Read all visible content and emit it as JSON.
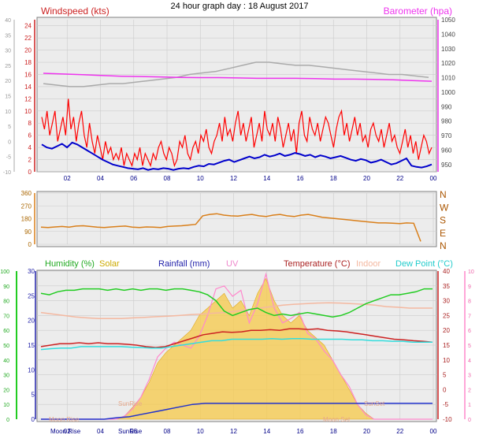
{
  "page_title": "24 hour graph day : 18 August 2017",
  "colors": {
    "wind": "#ff0000",
    "wind_avg": "#0000cc",
    "baro": "#ee33ee",
    "gust_max": "#aaaaaa",
    "dir": "#d97f1a",
    "humidity": "#22cc22",
    "solar": "#f5c542",
    "rain": "#2233cc",
    "uv": "#ff88cc",
    "temp": "#cc2222",
    "indoor": "#f4b8a0",
    "dew": "#33dddd",
    "grid": "#cccccc",
    "plot_bg": "#ececec"
  },
  "chart_data": [
    {
      "type": "line",
      "title": "",
      "x_ticks": [
        "02",
        "04",
        "06",
        "08",
        "10",
        "12",
        "14",
        "16",
        "18",
        "20",
        "22",
        "00"
      ],
      "left_axis": {
        "label": "Windspeed (kts)",
        "ticks": [
          24,
          22,
          20,
          18,
          16,
          14,
          12,
          10,
          8,
          6,
          4,
          2,
          0
        ],
        "range": [
          0,
          25
        ]
      },
      "right_axis": {
        "label": "Barometer (hpa)",
        "ticks": [
          1050,
          1040,
          1030,
          1020,
          1010,
          1000,
          990,
          980,
          970,
          960,
          950
        ],
        "range": [
          945,
          1050
        ]
      },
      "extra_left_ticks": [
        40,
        35,
        30,
        25,
        20,
        15,
        10,
        5,
        0,
        -5,
        -10
      ],
      "series": [
        {
          "name": "Windspeed (kts)",
          "axis": "left",
          "note": "gust",
          "values": [
            9,
            7,
            10,
            6,
            8,
            10,
            5,
            7,
            9,
            6,
            12,
            7,
            9,
            5,
            8,
            10,
            6,
            4,
            8,
            5,
            3,
            6,
            4,
            2,
            5,
            3,
            4,
            2,
            3,
            2,
            4,
            1,
            3,
            2,
            1,
            3,
            2,
            4,
            1,
            3,
            2,
            1,
            3,
            2,
            4,
            5,
            3,
            2,
            4,
            3,
            1,
            2,
            5,
            4,
            6,
            3,
            2,
            4,
            5,
            3,
            6,
            5,
            7,
            4,
            3,
            5,
            6,
            8,
            5,
            9,
            6,
            7,
            5,
            8,
            10,
            6,
            8,
            5,
            7,
            9,
            4,
            6,
            8,
            5,
            10,
            7,
            6,
            8,
            5,
            9,
            7,
            4,
            6,
            8,
            5,
            7,
            3,
            8,
            10,
            6,
            5,
            9,
            7,
            6,
            8,
            5,
            7,
            9,
            8,
            6,
            4,
            7,
            9,
            10,
            6,
            8,
            5,
            7,
            9,
            6,
            8,
            5,
            6,
            4,
            7,
            8,
            6,
            5,
            7,
            4,
            6,
            8,
            5,
            6,
            4,
            3,
            5,
            7,
            4,
            6,
            3,
            5,
            2,
            4,
            6,
            5,
            3,
            4
          ]
        },
        {
          "name": "",
          "axis": "left",
          "note": "average",
          "values": [
            4.5,
            4,
            3.8,
            4.2,
            4.6,
            4,
            4.8,
            4.5,
            4,
            3.5,
            3,
            2.5,
            2,
            1.6,
            1.2,
            1,
            0.8,
            0.6,
            0.5,
            0.4,
            0.6,
            0.3,
            0.5,
            0.4,
            0.6,
            0.5,
            0.3,
            0.5,
            0.6,
            0.5,
            0.8,
            1,
            0.9,
            1.3,
            1.2,
            1.5,
            1.8,
            2,
            1.6,
            1.9,
            2.2,
            2.5,
            2.2,
            2.4,
            2.8,
            2.5,
            2.7,
            3,
            2.6,
            2.8,
            3.1,
            2.9,
            2.6,
            2.8,
            2.4,
            2.7,
            2.5,
            2.2,
            2.4,
            2.6,
            2.3,
            2,
            1.8,
            2.1,
            1.9,
            1.5,
            1.7,
            2,
            1.6,
            1.2,
            1.4,
            1.8,
            2.2,
            1,
            0.8,
            0.7,
            0.9,
            1.2
          ]
        },
        {
          "name": "Barometer (hpa)",
          "axis": "right",
          "values": [
            1013,
            1012.5,
            1012,
            1011.5,
            1011,
            1010.8,
            1010.5,
            1010.2,
            1010,
            1010,
            1009.8,
            1009.5,
            1009.5,
            1009.5,
            1009.3,
            1009,
            1009,
            1008.8,
            1008.5,
            1008,
            1007.5
          ]
        },
        {
          "name": "",
          "axis": "extra",
          "note": "grey step line",
          "values": [
            19,
            18.5,
            18,
            18,
            18.5,
            19,
            19,
            19.5,
            20,
            20.5,
            21,
            22,
            22.5,
            23,
            24,
            25,
            26,
            26,
            25.5,
            25,
            25,
            24.5,
            24,
            23.5,
            23,
            22.5,
            22,
            22,
            21.5,
            21
          ]
        }
      ]
    },
    {
      "type": "line",
      "title": "",
      "left_axis": {
        "label": "",
        "ticks": [
          360,
          270,
          180,
          90,
          0
        ],
        "range": [
          0,
          360
        ]
      },
      "right_labels": [
        "N",
        "W",
        "S",
        "E",
        "N"
      ],
      "x_ticks": [],
      "series": [
        {
          "name": "",
          "values": [
            120,
            118,
            122,
            125,
            120,
            128,
            130,
            125,
            120,
            118,
            122,
            125,
            128,
            120,
            118,
            122,
            120,
            118,
            125,
            128,
            130,
            135,
            140,
            200,
            210,
            215,
            205,
            200,
            198,
            205,
            210,
            200,
            195,
            205,
            210,
            200,
            195,
            205,
            210,
            200,
            190,
            185,
            180,
            175,
            170,
            165,
            160,
            155,
            150,
            150,
            148,
            145,
            150,
            148,
            20
          ]
        }
      ]
    },
    {
      "type": "line",
      "title": "",
      "x_ticks": [
        "Moon Rise 02",
        "04",
        "SunRise 06",
        "08",
        "10",
        "12",
        "14",
        "16",
        "18",
        "20",
        "22",
        "00"
      ],
      "legend": [
        "Humidity (%)",
        "Solar",
        "Rainfall (mm)",
        "UV",
        "Temperature (°C)",
        "Indoor",
        "Dew Point (°C)"
      ],
      "axes": {
        "humidity_ticks": [
          100,
          90,
          80,
          70,
          60,
          50,
          40,
          30,
          20,
          10,
          0
        ],
        "rain_ticks": [
          30,
          25,
          20,
          15,
          10,
          5,
          0
        ],
        "temp_ticks": [
          40,
          35,
          30,
          25,
          20,
          15,
          10,
          5,
          0,
          -5,
          -10
        ],
        "uv_ticks": [
          10,
          9,
          8,
          7,
          6,
          5,
          4,
          3,
          2,
          1,
          0
        ]
      },
      "annotations": [
        "Moon Rise",
        "SunRise",
        "Moon Set",
        "SunSet"
      ],
      "series": [
        {
          "name": "Humidity (%)",
          "values": [
            85,
            84,
            86,
            87,
            87,
            88,
            88,
            88,
            87,
            88,
            87,
            88,
            87,
            88,
            88,
            87,
            88,
            88,
            87,
            86,
            84,
            80,
            73,
            70,
            72,
            74,
            75,
            72,
            70,
            71,
            70,
            71,
            72,
            71,
            70,
            69,
            70,
            72,
            75,
            78,
            80,
            82,
            84,
            84,
            85,
            86,
            88,
            88
          ]
        },
        {
          "name": "Temperature (°C)",
          "values": [
            14.5,
            15,
            15.5,
            15.5,
            15.8,
            15.5,
            15.8,
            15.5,
            15.5,
            15.3,
            15,
            14.5,
            14.2,
            14.5,
            15.5,
            16.5,
            17.5,
            18.5,
            19,
            19.5,
            19.3,
            19.5,
            20,
            20,
            20.2,
            20,
            20.5,
            20.5,
            20.3,
            20.5,
            20,
            19.8,
            19.5,
            19,
            18.5,
            18,
            17.5,
            17,
            16.8,
            16.5,
            16.3,
            16
          ]
        },
        {
          "name": "Dew Point (°C)",
          "values": [
            13.5,
            13.8,
            14,
            14,
            14.5,
            14.5,
            14.5,
            14.5,
            14.5,
            14.3,
            14.2,
            14,
            14,
            14.5,
            15,
            15.5,
            16,
            16.5,
            16.5,
            17,
            17,
            17,
            17,
            17.2,
            17,
            17.2,
            17.2,
            17,
            17,
            17,
            17,
            16.8,
            16.8,
            16.5,
            16.5,
            16.3,
            16.3,
            16,
            16,
            16
          ]
        },
        {
          "name": "Indoor",
          "values": [
            26,
            25.5,
            25,
            24.5,
            24.2,
            24,
            24,
            24,
            24.2,
            24.4,
            24.6,
            24.8,
            25,
            25.3,
            25.5,
            25.8,
            26,
            26.5,
            27,
            27.5,
            28,
            28.5,
            28.8,
            29,
            29.2,
            29.3,
            29.2,
            29,
            28.8,
            28.5,
            28,
            27.8,
            27.5,
            27.5,
            27.5
          ]
        },
        {
          "name": "Rainfall (mm)",
          "values": [
            0,
            0,
            0,
            0,
            0,
            0,
            0.3,
            0.5,
            1,
            1.5,
            2,
            2.5,
            3,
            3.2,
            3.2,
            3.2,
            3.2,
            3.2,
            3.2,
            3.2,
            3.2,
            3.2,
            3.2,
            3.2,
            3.2,
            3.2,
            3.2,
            3.2,
            3.2,
            3.2,
            3.2,
            3.2
          ]
        },
        {
          "name": "Solar",
          "values": [
            0,
            0,
            0,
            0,
            0,
            0,
            0,
            0,
            0,
            0,
            0.2,
            0.8,
            1.5,
            2.5,
            3.8,
            4.5,
            5,
            5.5,
            6,
            7,
            7.5,
            8,
            8.5,
            7.5,
            8,
            7,
            8.5,
            9.5,
            8,
            7,
            6.5,
            7,
            6,
            5.5,
            5,
            4,
            3,
            2,
            1,
            0.4,
            0,
            0,
            0,
            0,
            0,
            0,
            0,
            0
          ]
        },
        {
          "name": "UV",
          "values": [
            0,
            0,
            0,
            0,
            0,
            0,
            0,
            0,
            0,
            0,
            0.2,
            0.7,
            1.5,
            2.7,
            4.2,
            4.8,
            5.2,
            5,
            4.8,
            5.6,
            7,
            8.8,
            9,
            8.3,
            8.7,
            6.5,
            7.8,
            9.8,
            7.5,
            6.5,
            6.8,
            7.2,
            5.8,
            5.4,
            4.6,
            4,
            3,
            2.2,
            1,
            0.3,
            0,
            0,
            0,
            0,
            0,
            0,
            0,
            0
          ]
        }
      ]
    }
  ]
}
